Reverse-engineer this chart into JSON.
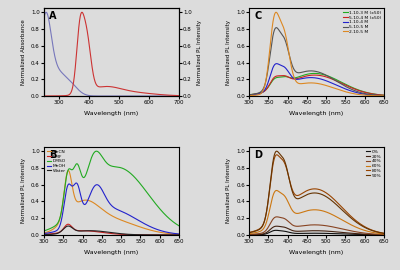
{
  "panel_A": {
    "label": "A",
    "xlabel": "Wavelength (nm)",
    "ylabel_left": "Normalized Absorbance",
    "ylabel_right": "Normalized PL Intensity",
    "xlim": [
      250,
      700
    ],
    "ylim": [
      0.0,
      1.05
    ],
    "abs_color": "#7777bb",
    "pl_color": "#cc3333"
  },
  "panel_B": {
    "label": "B",
    "xlabel": "Wavelength (nm)",
    "ylabel": "Normalized PL Intensity",
    "xlim": [
      300,
      650
    ],
    "ylim": [
      0.0,
      1.05
    ],
    "legend": [
      "MeCN",
      "DMF",
      "DMSO",
      "MeOH",
      "Water"
    ],
    "colors": [
      "#dd8822",
      "#cc2222",
      "#22aa22",
      "#2222cc",
      "#222222"
    ]
  },
  "panel_C": {
    "label": "C",
    "xlabel": "Wavelength (nm)",
    "ylabel": "Normalized PL Intensity",
    "xlim": [
      300,
      650
    ],
    "ylim": [
      0.0,
      1.05
    ],
    "legend": [
      "1.10-3 M (x50)",
      "5.10-4 M (x50)",
      "1.10-4 M",
      "5.10-5 M",
      "2.10-5 M"
    ],
    "colors": [
      "#22aa22",
      "#cc2222",
      "#2222cc",
      "#555555",
      "#dd8822"
    ]
  },
  "panel_D": {
    "label": "D",
    "xlabel": "Wavelength (nm)",
    "ylabel": "Normalized PL Intensity",
    "xlim": [
      300,
      650
    ],
    "ylim": [
      0.0,
      1.05
    ],
    "legend": [
      "0%",
      "20%",
      "40%",
      "60%",
      "80%",
      "90%"
    ],
    "colors": [
      "#111111",
      "#442211",
      "#884422",
      "#cc7711",
      "#994400",
      "#663300"
    ]
  },
  "background": "#dcdcdc"
}
